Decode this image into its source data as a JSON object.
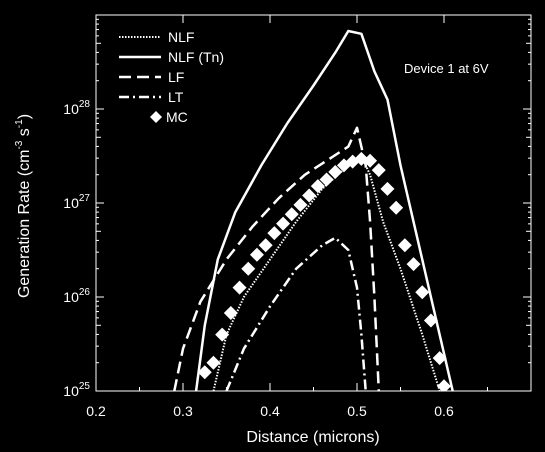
{
  "chart_data": {
    "type": "line",
    "title": "",
    "annotation": "Device 1 at 6V",
    "xlabel": "Distance (microns)",
    "ylabel": {
      "main": "Generation Rate (cm",
      "sup1": "-3",
      "mid": " s",
      "sup2": "-1",
      "end": ")"
    },
    "xlim": [
      0.2,
      0.7
    ],
    "ylim_log10": [
      25,
      29
    ],
    "log_y": true,
    "x_ticks": [
      0.2,
      0.3,
      0.4,
      0.5,
      0.6
    ],
    "x_tick_labels": [
      "0.2",
      "0.3",
      "0.4",
      "0.5",
      "0.6"
    ],
    "y_ticks_log10": [
      25,
      26,
      27,
      28
    ],
    "y_tick_labels": [
      {
        "base": "10",
        "exp": "25"
      },
      {
        "base": "10",
        "exp": "26"
      },
      {
        "base": "10",
        "exp": "27"
      },
      {
        "base": "10",
        "exp": "28"
      }
    ],
    "legend_position": "top-left",
    "colors": {
      "background": "#000000",
      "foreground": "#ffffff"
    },
    "series": [
      {
        "name": "NLF",
        "style": "dotted",
        "points_log10": [
          [
            0.335,
            25.0
          ],
          [
            0.35,
            25.6
          ],
          [
            0.37,
            26.0
          ],
          [
            0.4,
            26.4
          ],
          [
            0.43,
            26.8
          ],
          [
            0.46,
            27.15
          ],
          [
            0.49,
            27.4
          ],
          [
            0.505,
            27.5
          ],
          [
            0.515,
            27.3
          ],
          [
            0.53,
            26.8
          ],
          [
            0.55,
            26.3
          ],
          [
            0.575,
            25.6
          ],
          [
            0.595,
            25.0
          ]
        ]
      },
      {
        "name": "NLF (Tn)",
        "style": "solid",
        "points_log10": [
          [
            0.315,
            25.0
          ],
          [
            0.325,
            25.7
          ],
          [
            0.34,
            26.4
          ],
          [
            0.36,
            26.9
          ],
          [
            0.39,
            27.4
          ],
          [
            0.42,
            27.85
          ],
          [
            0.45,
            28.25
          ],
          [
            0.475,
            28.6
          ],
          [
            0.49,
            28.83
          ],
          [
            0.505,
            28.8
          ],
          [
            0.52,
            28.4
          ],
          [
            0.535,
            28.1
          ],
          [
            0.55,
            27.4
          ],
          [
            0.57,
            26.6
          ],
          [
            0.585,
            26.0
          ],
          [
            0.61,
            25.0
          ]
        ]
      },
      {
        "name": "LF",
        "style": "dashed",
        "points_log10": [
          [
            0.29,
            25.0
          ],
          [
            0.3,
            25.45
          ],
          [
            0.32,
            25.95
          ],
          [
            0.35,
            26.4
          ],
          [
            0.38,
            26.75
          ],
          [
            0.41,
            27.05
          ],
          [
            0.44,
            27.3
          ],
          [
            0.47,
            27.48
          ],
          [
            0.49,
            27.6
          ],
          [
            0.5,
            27.8
          ],
          [
            0.51,
            27.4
          ],
          [
            0.515,
            26.8
          ],
          [
            0.52,
            26.0
          ],
          [
            0.525,
            25.0
          ]
        ]
      },
      {
        "name": "LT",
        "style": "dashdot",
        "points_log10": [
          [
            0.35,
            25.0
          ],
          [
            0.37,
            25.45
          ],
          [
            0.4,
            25.9
          ],
          [
            0.43,
            26.3
          ],
          [
            0.46,
            26.55
          ],
          [
            0.475,
            26.63
          ],
          [
            0.49,
            26.5
          ],
          [
            0.5,
            26.1
          ],
          [
            0.505,
            25.6
          ],
          [
            0.51,
            25.0
          ]
        ]
      },
      {
        "name": "MC",
        "style": "diamond",
        "points_log10": [
          [
            0.325,
            25.2
          ],
          [
            0.335,
            25.3
          ],
          [
            0.345,
            25.6
          ],
          [
            0.355,
            25.83
          ],
          [
            0.365,
            26.1
          ],
          [
            0.375,
            26.3
          ],
          [
            0.385,
            26.45
          ],
          [
            0.395,
            26.55
          ],
          [
            0.405,
            26.68
          ],
          [
            0.415,
            26.78
          ],
          [
            0.425,
            26.88
          ],
          [
            0.435,
            26.98
          ],
          [
            0.445,
            27.08
          ],
          [
            0.455,
            27.18
          ],
          [
            0.465,
            27.25
          ],
          [
            0.475,
            27.33
          ],
          [
            0.485,
            27.4
          ],
          [
            0.495,
            27.44
          ],
          [
            0.505,
            27.47
          ],
          [
            0.515,
            27.45
          ],
          [
            0.525,
            27.35
          ],
          [
            0.535,
            27.15
          ],
          [
            0.545,
            26.95
          ],
          [
            0.555,
            26.55
          ],
          [
            0.565,
            26.35
          ],
          [
            0.575,
            26.05
          ],
          [
            0.585,
            25.75
          ],
          [
            0.595,
            25.35
          ],
          [
            0.6,
            25.05
          ]
        ]
      }
    ]
  }
}
